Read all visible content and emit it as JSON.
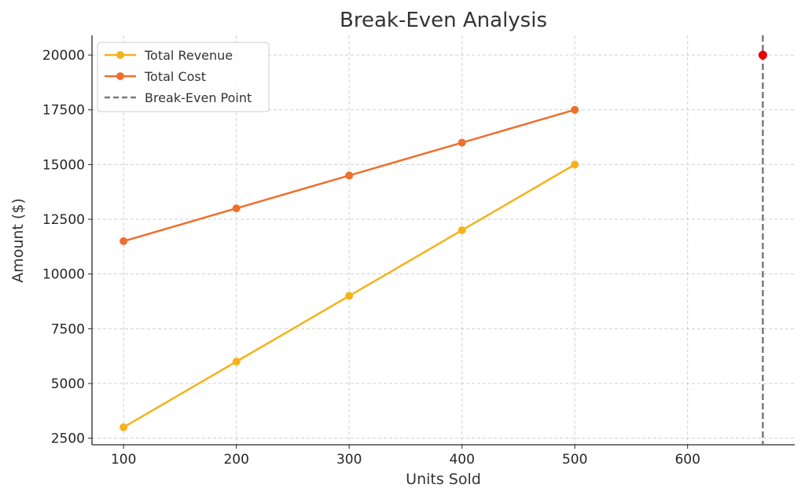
{
  "chart_data": {
    "type": "line",
    "title": "Break-Even Analysis",
    "xlabel": "Units Sold",
    "ylabel": "Amount ($)",
    "xlim": [
      72,
      695
    ],
    "ylim": [
      2200,
      20900
    ],
    "xticks": [
      100,
      200,
      300,
      400,
      500,
      600
    ],
    "yticks": [
      2500,
      5000,
      7500,
      10000,
      12500,
      15000,
      17500,
      20000
    ],
    "grid": true,
    "legend_position": "top-left",
    "x": [
      100,
      200,
      300,
      400,
      500
    ],
    "series": [
      {
        "name": "Total Revenue",
        "values": [
          3000,
          6000,
          9000,
          12000,
          15000
        ],
        "color": "#f5b21b",
        "marker": "circle"
      },
      {
        "name": "Total Cost",
        "values": [
          11500,
          13000,
          14500,
          16000,
          17500
        ],
        "color": "#ee6f2d",
        "marker": "circle"
      }
    ],
    "break_even": {
      "label": "Break-Even Point",
      "x": 666.67,
      "y": 20000,
      "line_color": "#7a7a7a",
      "point_color": "#ee0000",
      "line_style": "dashed"
    }
  }
}
